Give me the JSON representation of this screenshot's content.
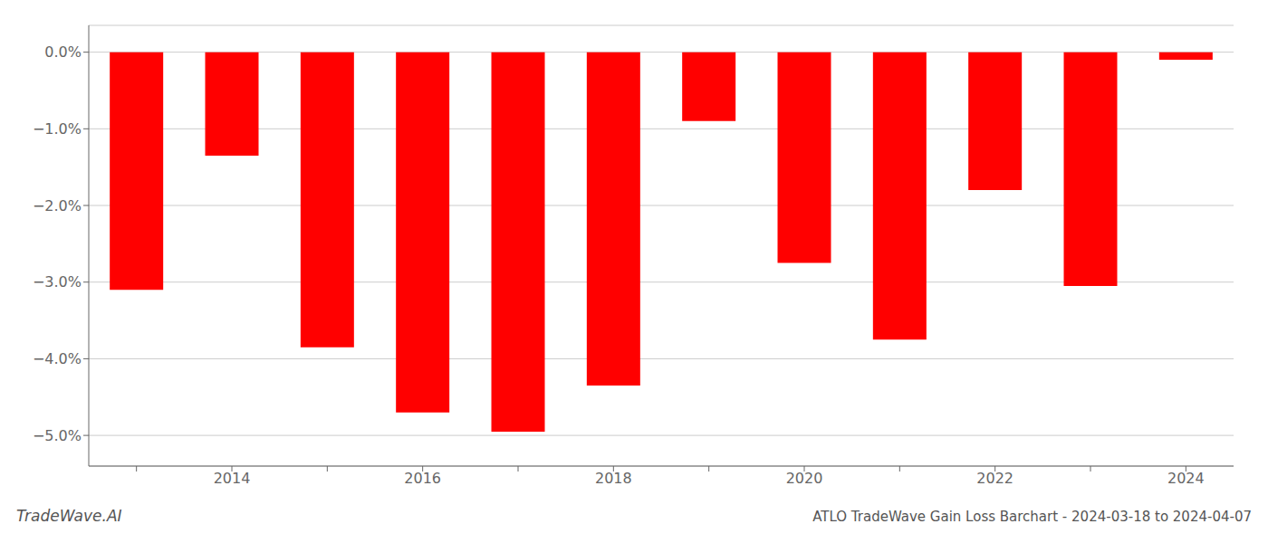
{
  "chart_data": {
    "type": "bar",
    "title": "ATLO TradeWave Gain Loss Barchart - 2024-03-18 to 2024-04-07",
    "annotations": [
      "TradeWave.AI"
    ],
    "categories": [
      null,
      "2014",
      null,
      "2016",
      null,
      "2018",
      null,
      "2020",
      null,
      "2022",
      null,
      "2024"
    ],
    "values": [
      -3.1,
      -1.35,
      -3.85,
      -4.7,
      -4.95,
      -4.35,
      -0.9,
      -2.75,
      -3.75,
      -1.8,
      -3.05,
      -0.1
    ],
    "color": "#ff0000",
    "ylim": [
      -5.4,
      0.35
    ],
    "yticks": [
      {
        "value": 0.0,
        "label": "0.0%"
      },
      {
        "value": -1.0,
        "label": "−1.0%"
      },
      {
        "value": -2.0,
        "label": "−2.0%"
      },
      {
        "value": -3.0,
        "label": "−3.0%"
      },
      {
        "value": -4.0,
        "label": "−4.0%"
      },
      {
        "value": -5.0,
        "label": "−5.0%"
      }
    ],
    "grid": true
  }
}
